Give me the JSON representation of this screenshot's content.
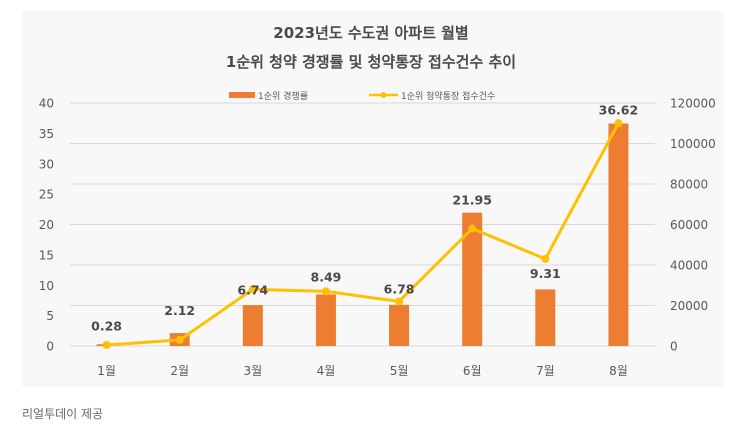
{
  "chart_data": {
    "type": "bar",
    "title": [
      "2023년도 수도권 아파트 월별",
      "1순위 청약 경쟁률 및 청약통장 접수건수 추이"
    ],
    "categories": [
      "1월",
      "2월",
      "3월",
      "4월",
      "5월",
      "6월",
      "7월",
      "8월"
    ],
    "series": [
      {
        "name": "1순위 경쟁률",
        "type": "bar",
        "axis": "left",
        "color": "#ed7d31",
        "values": [
          0.28,
          2.12,
          6.74,
          8.49,
          6.78,
          21.95,
          9.31,
          36.62
        ],
        "data_labels": [
          "0.28",
          "2.12",
          "6.74",
          "8.49",
          "6.78",
          "21.95",
          "9.31",
          "36.62"
        ]
      },
      {
        "name": "1순위 청약통장 접수건수",
        "type": "line",
        "axis": "right",
        "color": "#ffc000",
        "values": [
          500,
          3000,
          28000,
          27000,
          22000,
          58000,
          43000,
          110000
        ]
      }
    ],
    "left_axis": {
      "ylim": [
        0,
        40
      ],
      "ticks": [
        "0",
        "5",
        "10",
        "15",
        "20",
        "25",
        "30",
        "35",
        "40"
      ]
    },
    "right_axis": {
      "ylim": [
        0,
        120000
      ],
      "ticks": [
        "0",
        "20000",
        "40000",
        "60000",
        "80000",
        "100000",
        "120000"
      ]
    },
    "xlabel": "",
    "ylabel": "",
    "grid": true,
    "legend": "top-center"
  },
  "caption": "리얼투데이 제공"
}
